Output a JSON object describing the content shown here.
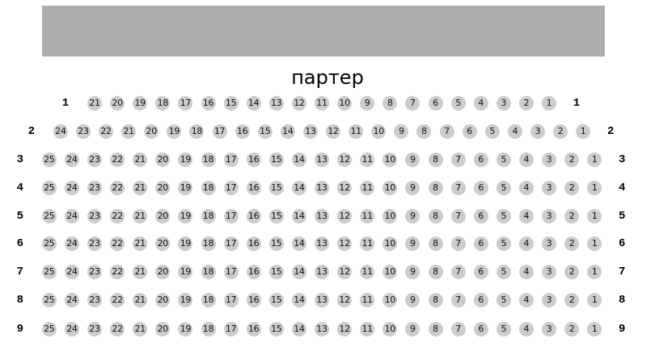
{
  "screen_color": "#aeacae",
  "seat_color": "#cccccc",
  "hall_name": "партер",
  "rows": [
    {
      "label": "1",
      "seats": 21
    },
    {
      "label": "2",
      "seats": 24
    },
    {
      "label": "3",
      "seats": 25
    },
    {
      "label": "4",
      "seats": 25
    },
    {
      "label": "5",
      "seats": 25
    },
    {
      "label": "6",
      "seats": 25
    },
    {
      "label": "7",
      "seats": 25
    },
    {
      "label": "8",
      "seats": 25
    },
    {
      "label": "9",
      "seats": 25
    }
  ]
}
